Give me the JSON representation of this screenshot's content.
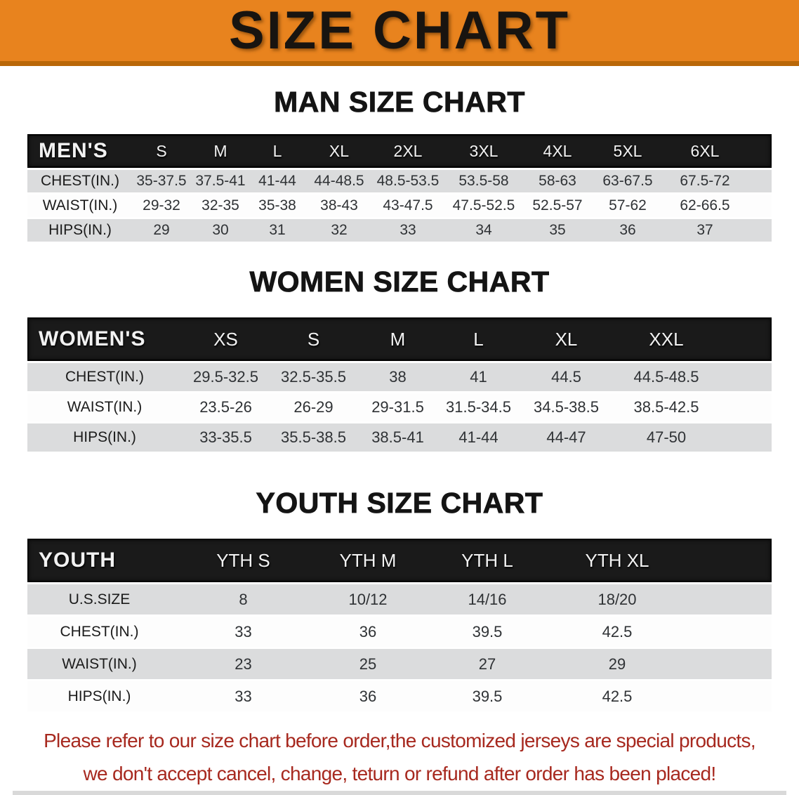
{
  "banner": {
    "title": "SIZE CHART",
    "bg_color": "#e8831e",
    "edge_color": "#b96708"
  },
  "sections": [
    {
      "heading": "MAN SIZE CHART",
      "table": {
        "label": "MEN'S",
        "columns": [
          "S",
          "M",
          "L",
          "XL",
          "2XL",
          "3XL",
          "4XL",
          "5XL",
          "6XL"
        ],
        "rows": [
          {
            "label": "CHEST(IN.)",
            "values": [
              "35-37.5",
              "37.5-41",
              "41-44",
              "44-48.5",
              "48.5-53.5",
              "53.5-58",
              "58-63",
              "63-67.5",
              "67.5-72"
            ]
          },
          {
            "label": "WAIST(IN.)",
            "values": [
              "29-32",
              "32-35",
              "35-38",
              "38-43",
              "43-47.5",
              "47.5-52.5",
              "52.5-57",
              "57-62",
              "62-66.5"
            ]
          },
          {
            "label": "HIPS(IN.)",
            "values": [
              "29",
              "30",
              "31",
              "32",
              "33",
              "34",
              "35",
              "36",
              "37"
            ]
          }
        ]
      }
    },
    {
      "heading": "WOMEN SIZE CHART",
      "table": {
        "label": "WOMEN'S",
        "columns": [
          "XS",
          "S",
          "M",
          "L",
          "XL",
          "XXL"
        ],
        "rows": [
          {
            "label": "CHEST(IN.)",
            "values": [
              "29.5-32.5",
              "32.5-35.5",
              "38",
              "41",
              "44.5",
              "44.5-48.5"
            ]
          },
          {
            "label": "WAIST(IN.)",
            "values": [
              "23.5-26",
              "26-29",
              "29-31.5",
              "31.5-34.5",
              "34.5-38.5",
              "38.5-42.5"
            ]
          },
          {
            "label": "HIPS(IN.)",
            "values": [
              "33-35.5",
              "35.5-38.5",
              "38.5-41",
              "41-44",
              "44-47",
              "47-50"
            ]
          }
        ]
      }
    },
    {
      "heading": "YOUTH SIZE CHART",
      "table": {
        "label": "YOUTH",
        "columns": [
          "YTH S",
          "YTH M",
          "YTH L",
          "YTH XL"
        ],
        "rows": [
          {
            "label": "U.S.SIZE",
            "values": [
              "8",
              "10/12",
              "14/16",
              "18/20"
            ]
          },
          {
            "label": "CHEST(IN.)",
            "values": [
              "33",
              "36",
              "39.5",
              "42.5"
            ]
          },
          {
            "label": "WAIST(IN.)",
            "values": [
              "23",
              "25",
              "27",
              "29"
            ]
          },
          {
            "label": "HIPS(IN.)",
            "values": [
              "33",
              "36",
              "39.5",
              "42.5"
            ]
          }
        ]
      }
    }
  ],
  "disclaimer": {
    "line1": "Please refer to our size chart before order,the customized jerseys are special products,",
    "line2": "we don't accept cancel, change, teturn or refund after order has been placed!",
    "color": "#a7291f"
  }
}
